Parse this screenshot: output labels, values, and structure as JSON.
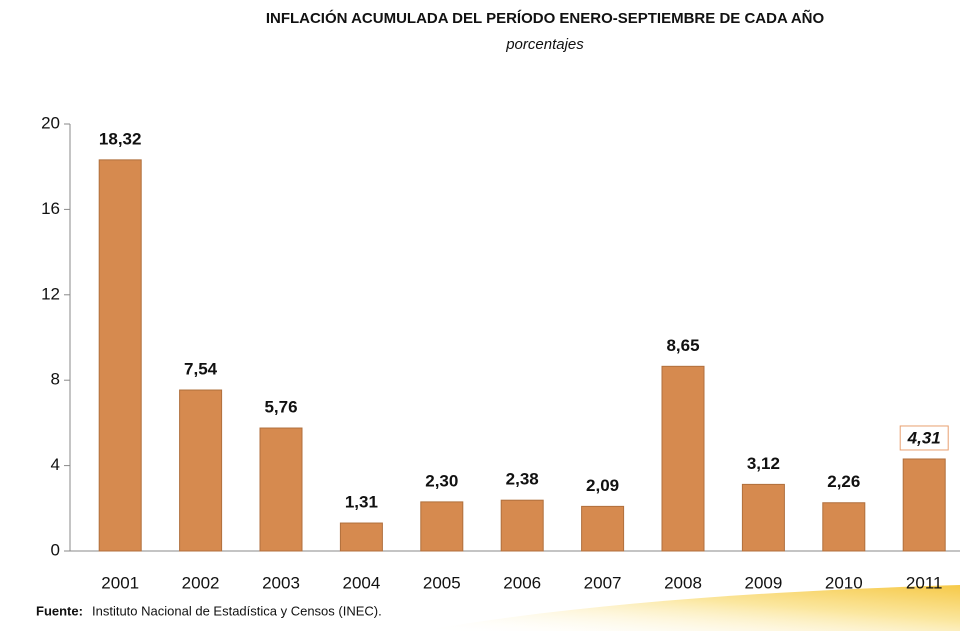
{
  "chart_data": {
    "type": "bar",
    "title": "INFLACIÓN ACUMULADA DEL PERÍODO ENERO-SEPTIEMBRE DE CADA AÑO",
    "subtitle": "porcentajes",
    "categories": [
      "2001",
      "2002",
      "2003",
      "2004",
      "2005",
      "2006",
      "2007",
      "2008",
      "2009",
      "2010",
      "2011"
    ],
    "values": [
      18.32,
      7.54,
      5.76,
      1.31,
      2.3,
      2.38,
      2.09,
      8.65,
      3.12,
      2.26,
      4.31
    ],
    "value_labels": [
      "18,32",
      "7,54",
      "5,76",
      "1,31",
      "2,30",
      "2,38",
      "2,09",
      "8,65",
      "3,12",
      "2,26",
      "4,31"
    ],
    "color": "#d68a4f",
    "ylim": [
      0,
      20
    ],
    "yticks": [
      0,
      4,
      8,
      12,
      16,
      20
    ],
    "source": {
      "label": "Fuente:",
      "text": "Instituto  Nacional de Estadística y Censos (INEC)."
    }
  }
}
